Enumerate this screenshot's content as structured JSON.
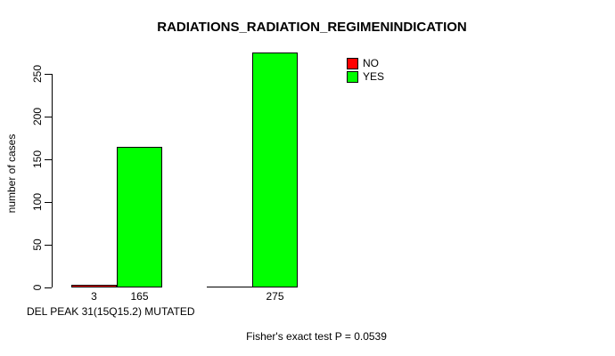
{
  "chart_data": {
    "type": "bar",
    "title": "RADIATIONS_RADIATION_REGIMENINDICATION",
    "xlabel": "DEL PEAK 31(15Q15.2) MUTATED",
    "ylabel": "number of cases",
    "ylim": [
      0,
      250
    ],
    "yticks": [
      0,
      50,
      100,
      150,
      200,
      250
    ],
    "grid": false,
    "legend_position": "top-right",
    "categories": [
      "",
      ""
    ],
    "series": [
      {
        "name": "NO",
        "color": "#ff0000",
        "values": [
          3,
          0
        ],
        "value_labels": [
          "3",
          ""
        ]
      },
      {
        "name": "YES",
        "color": "#00ff00",
        "values": [
          165,
          275
        ],
        "value_labels": [
          "165",
          "275"
        ]
      }
    ],
    "annotation": "Fisher's exact test P = 0.0539"
  },
  "colors": {
    "background": "#ffffff",
    "axis": "#000000",
    "bar_border": "#000000",
    "no": "#ff0000",
    "yes": "#00ff00"
  }
}
